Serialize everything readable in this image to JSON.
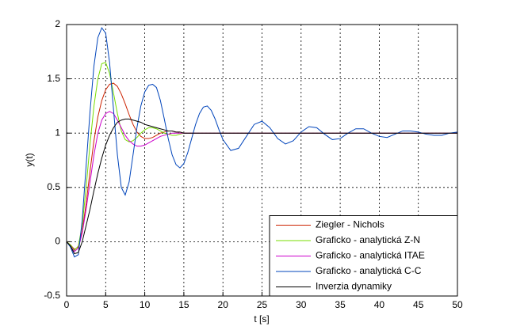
{
  "chart_data": {
    "type": "line",
    "xlabel": "t [s]",
    "ylabel": "y(t)",
    "x": [
      0,
      0.5,
      1,
      1.5,
      2,
      2.5,
      3,
      3.5,
      4,
      4.5,
      5,
      5.5,
      6,
      6.5,
      7,
      7.5,
      8,
      8.5,
      9,
      9.5,
      10,
      10.5,
      11,
      11.5,
      12,
      12.5,
      13,
      13.5,
      14,
      14.5,
      15,
      15.5,
      16,
      16.5,
      17,
      17.5,
      18,
      18.5,
      19,
      19.5,
      20,
      21,
      22,
      23,
      24,
      25,
      26,
      27,
      28,
      29,
      30,
      31,
      32,
      33,
      34,
      35,
      36,
      37,
      38,
      39,
      40,
      41,
      42,
      43,
      44,
      45,
      46,
      47,
      48,
      49,
      50
    ],
    "series": [
      {
        "name": "Ziegler - Nichols",
        "color": "#cc2200",
        "values": [
          0,
          -0.03,
          -0.07,
          -0.05,
          0.1,
          0.35,
          0.65,
          0.93,
          1.15,
          1.3,
          1.4,
          1.45,
          1.46,
          1.43,
          1.36,
          1.27,
          1.17,
          1.08,
          1.01,
          0.97,
          0.95,
          0.95,
          0.96,
          0.98,
          1,
          1.01,
          1.02,
          1.02,
          1.01,
          1.01,
          1,
          1,
          1,
          1,
          1,
          1,
          1,
          1,
          1,
          1,
          1,
          1,
          1,
          1,
          1,
          1,
          1,
          1,
          1,
          1,
          1,
          1,
          1,
          1,
          1,
          1,
          1,
          1,
          1,
          1,
          1,
          1,
          1,
          1,
          1,
          1,
          1,
          1,
          1,
          1,
          1
        ]
      },
      {
        "name": "Graficko - analytická Z-N",
        "color": "#77dd00",
        "values": [
          0,
          -0.03,
          -0.08,
          -0.04,
          0.15,
          0.5,
          0.9,
          1.25,
          1.5,
          1.64,
          1.65,
          1.55,
          1.37,
          1.18,
          1.02,
          0.94,
          0.92,
          0.93,
          0.96,
          1,
          1.03,
          1.05,
          1.05,
          1.04,
          1.02,
          1,
          0.99,
          0.98,
          0.98,
          0.99,
          1,
          1,
          1,
          1,
          1,
          1,
          1,
          1,
          1,
          1,
          1,
          1,
          1,
          1,
          1,
          1,
          1,
          1,
          1,
          1,
          1,
          1,
          1,
          1,
          1,
          1,
          1,
          1,
          1,
          1,
          1,
          1,
          1,
          1,
          1,
          1,
          1,
          1,
          1,
          1,
          1
        ]
      },
      {
        "name": "Graficko - analytická ITAE",
        "color": "#cc00cc",
        "values": [
          0,
          -0.04,
          -0.09,
          -0.06,
          0.08,
          0.3,
          0.55,
          0.8,
          1,
          1.12,
          1.18,
          1.2,
          1.18,
          1.12,
          1.05,
          0.98,
          0.93,
          0.9,
          0.88,
          0.88,
          0.89,
          0.91,
          0.93,
          0.95,
          0.97,
          0.98,
          0.99,
          1,
          1,
          1,
          1,
          1,
          1,
          1,
          1,
          1,
          1,
          1,
          1,
          1,
          1,
          1,
          1,
          1,
          1,
          1,
          1,
          1,
          1,
          1,
          1,
          1,
          1,
          1,
          1,
          1,
          1,
          1,
          1,
          1,
          1,
          1,
          1,
          1,
          1,
          1,
          1,
          1,
          1,
          1,
          1
        ]
      },
      {
        "name": "Graficko - analytická C-C",
        "color": "#0044bb",
        "values": [
          0,
          -0.05,
          -0.14,
          -0.12,
          0.2,
          0.7,
          1.2,
          1.62,
          1.88,
          1.97,
          1.92,
          1.65,
          1.22,
          0.8,
          0.5,
          0.43,
          0.55,
          0.8,
          1.05,
          1.25,
          1.38,
          1.44,
          1.45,
          1.42,
          1.3,
          1.13,
          0.95,
          0.8,
          0.71,
          0.68,
          0.72,
          0.82,
          0.95,
          1.08,
          1.18,
          1.24,
          1.25,
          1.21,
          1.13,
          1.03,
          0.94,
          0.84,
          0.86,
          0.97,
          1.08,
          1.11,
          1.05,
          0.95,
          0.9,
          0.93,
          1.01,
          1.06,
          1.05,
          0.99,
          0.94,
          0.95,
          1,
          1.04,
          1.04,
          1,
          0.97,
          0.96,
          0.99,
          1.02,
          1.02,
          1.01,
          0.99,
          0.98,
          0.98,
          1,
          1.01
        ]
      },
      {
        "name": "Inverzia dynamiky",
        "color": "#000000",
        "values": [
          0,
          -0.04,
          -0.11,
          -0.1,
          0,
          0.15,
          0.3,
          0.47,
          0.63,
          0.77,
          0.89,
          0.98,
          1.05,
          1.1,
          1.12,
          1.13,
          1.13,
          1.12,
          1.11,
          1.1,
          1.08,
          1.07,
          1.06,
          1.05,
          1.04,
          1.03,
          1.02,
          1.02,
          1.01,
          1.01,
          1,
          1,
          1,
          1,
          1,
          1,
          1,
          1,
          1,
          1,
          1,
          1,
          1,
          1,
          1,
          1,
          1,
          1,
          1,
          1,
          1,
          1,
          1,
          1,
          1,
          1,
          1,
          1,
          1,
          1,
          1,
          1,
          1,
          1,
          1,
          1,
          1,
          1,
          1,
          1,
          1
        ]
      }
    ],
    "xlim": [
      0,
      50
    ],
    "xticks": [
      0,
      5,
      10,
      15,
      20,
      25,
      30,
      35,
      40,
      45,
      50
    ],
    "ylim": [
      -0.5,
      2
    ],
    "yticks": [
      -0.5,
      0,
      0.5,
      1,
      1.5,
      2
    ],
    "grid": true,
    "legend": "lower right"
  }
}
